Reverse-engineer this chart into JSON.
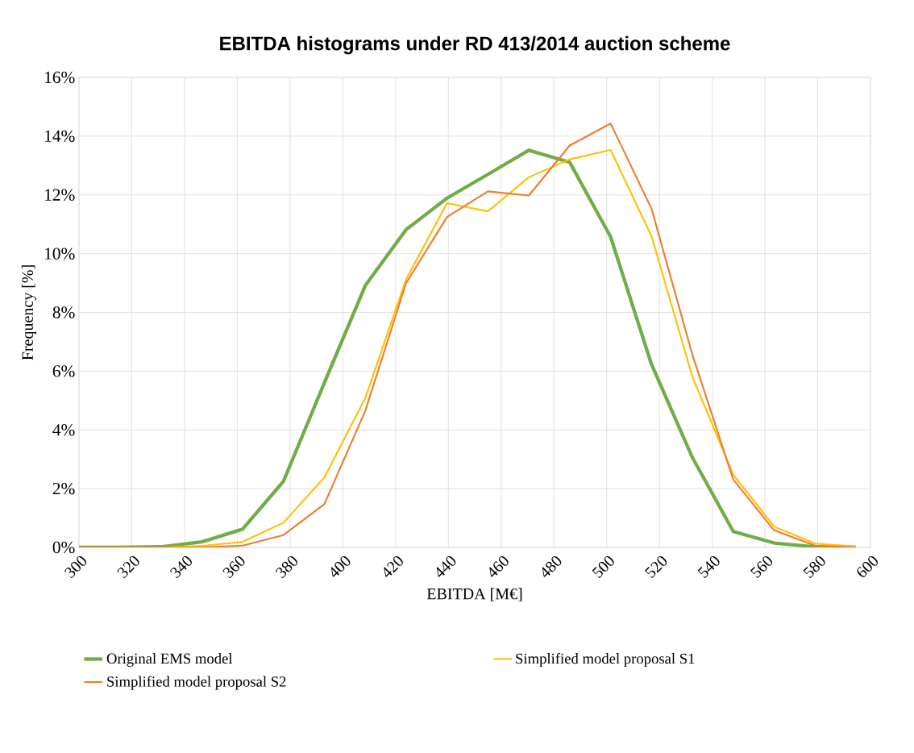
{
  "chart_data": {
    "type": "line",
    "title": "EBITDA histograms under RD 413/2014 auction scheme",
    "xlabel": "EBITDA [M€]",
    "ylabel": "Frequency [%]",
    "x": [
      300,
      315.5,
      331,
      346.5,
      362,
      377.5,
      393,
      408.5,
      424,
      439.5,
      455,
      470.5,
      486,
      501.5,
      517,
      532.5,
      548,
      563.5,
      579,
      594.5
    ],
    "series": [
      {
        "name": "Original EMS model",
        "color": "#70ad47",
        "values": [
          0,
          0,
          0.02,
          0.19,
          0.62,
          2.25,
          5.6,
          8.91,
          10.82,
          11.89,
          12.7,
          13.52,
          13.11,
          10.57,
          6.23,
          3.06,
          0.54,
          0.15,
          0.02,
          0
        ]
      },
      {
        "name": "Simplified model proposal S1",
        "color": "#ffc000",
        "values": [
          0,
          0,
          0,
          0.05,
          0.19,
          0.84,
          2.38,
          5.08,
          9.13,
          11.72,
          11.44,
          12.6,
          13.21,
          13.53,
          10.6,
          5.81,
          2.47,
          0.71,
          0.13,
          0.03
        ]
      },
      {
        "name": "Simplified model proposal S2",
        "color": "#ed7d31",
        "values": [
          0,
          0,
          0,
          0,
          0.06,
          0.42,
          1.47,
          4.65,
          9.0,
          11.25,
          12.12,
          11.98,
          13.68,
          14.43,
          11.53,
          6.56,
          2.31,
          0.58,
          0.06,
          0
        ]
      }
    ],
    "xlim": [
      300,
      600
    ],
    "xticks": [
      300,
      320,
      340,
      360,
      380,
      400,
      420,
      440,
      460,
      480,
      500,
      520,
      540,
      560,
      580,
      600
    ],
    "ylim": [
      0,
      16
    ],
    "yticks": [
      {
        "value": 0,
        "label": "0%"
      },
      {
        "value": 2,
        "label": "2%"
      },
      {
        "value": 4,
        "label": "4%"
      },
      {
        "value": 6,
        "label": "6%"
      },
      {
        "value": 8,
        "label": "8%"
      },
      {
        "value": 10,
        "label": "10%"
      },
      {
        "value": 12,
        "label": "12%"
      },
      {
        "value": 14,
        "label": "14%"
      },
      {
        "value": 16,
        "label": "16%"
      }
    ],
    "grid": true,
    "legend": "bottom",
    "marker": "none",
    "line_style": "solid"
  }
}
